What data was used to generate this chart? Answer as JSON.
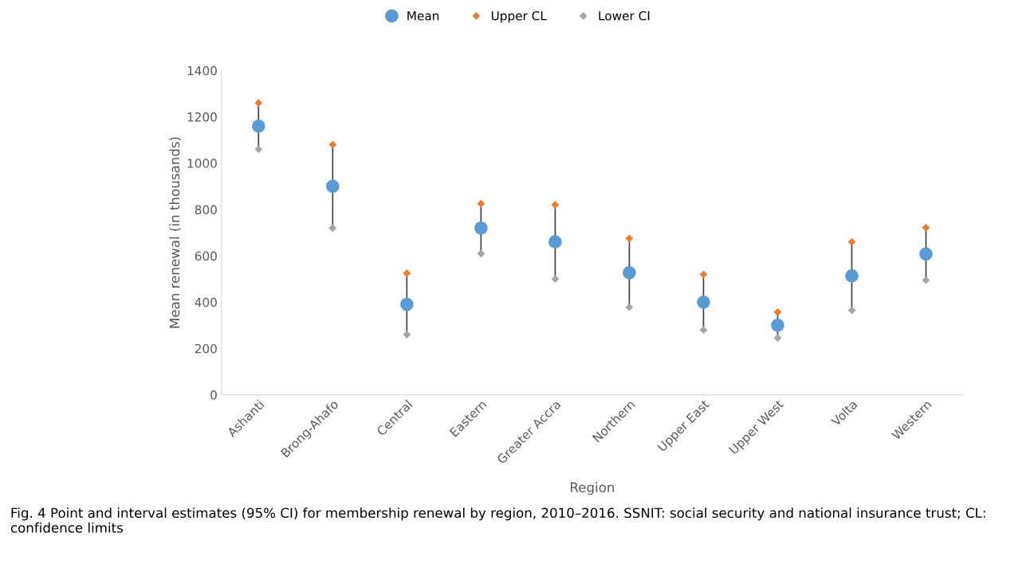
{
  "chart_data": {
    "type": "scatter",
    "xlabel": "Region",
    "ylabel": "Mean renewal (in thousands)",
    "categories": [
      "Ashanti",
      "Brong-Ahafo",
      "Central",
      "Eastern",
      "Greater Accra",
      "Northern",
      "Upper East",
      "Upper West",
      "Volta",
      "Western"
    ],
    "series": [
      {
        "name": "Mean",
        "color": "#5b9bd5",
        "marker": "circle",
        "values": [
          1160,
          900,
          390,
          720,
          660,
          527,
          400,
          300,
          513,
          608
        ],
        "errors": [
          [
            100,
            100
          ],
          [
            180,
            180
          ],
          [
            130,
            130
          ],
          [
            110,
            110
          ],
          [
            160,
            160
          ],
          [
            150,
            150
          ],
          [
            120,
            120
          ],
          [
            55,
            55
          ],
          [
            150,
            150
          ],
          [
            115,
            115
          ]
        ]
      },
      {
        "name": "Upper CL",
        "color": "#ed7d31",
        "marker": "diamond",
        "values": [
          1260,
          1080,
          525,
          825,
          820,
          675,
          520,
          357,
          660,
          722
        ]
      },
      {
        "name": "Lower CI",
        "color": "#a5a5a5",
        "marker": "diamond",
        "values": [
          1060,
          720,
          260,
          610,
          500,
          378,
          280,
          245,
          365,
          495
        ]
      }
    ],
    "ylim": [
      0,
      1400
    ],
    "yticks": [
      0,
      200,
      400,
      600,
      800,
      1000,
      1200,
      1400
    ],
    "grid": false,
    "legend": "top",
    "annotations": [
      "Fig. 4 Point and interval estimates (95% CI) for membership renewal by region, 2010–2016. SSNIT: social security and national insurance trust; CL: confidence limits"
    ]
  }
}
